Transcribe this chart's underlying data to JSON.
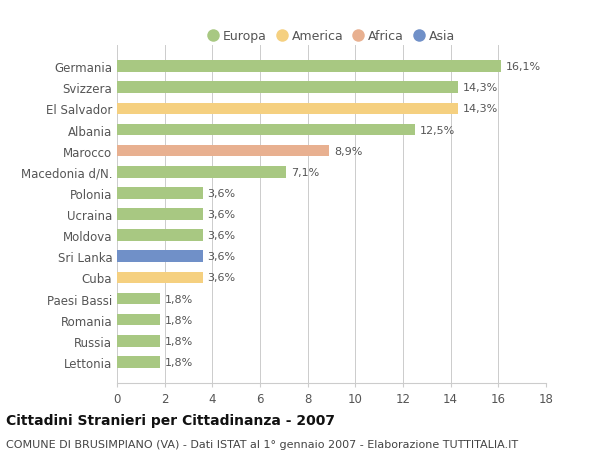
{
  "categories": [
    "Lettonia",
    "Russia",
    "Romania",
    "Paesi Bassi",
    "Cuba",
    "Sri Lanka",
    "Moldova",
    "Ucraina",
    "Polonia",
    "Macedonia d/N.",
    "Marocco",
    "Albania",
    "El Salvador",
    "Svizzera",
    "Germania"
  ],
  "values": [
    1.8,
    1.8,
    1.8,
    1.8,
    3.6,
    3.6,
    3.6,
    3.6,
    3.6,
    7.1,
    8.9,
    12.5,
    14.3,
    14.3,
    16.1
  ],
  "continents": [
    "Europa",
    "Europa",
    "Europa",
    "Europa",
    "America",
    "Asia",
    "Europa",
    "Europa",
    "Europa",
    "Europa",
    "Africa",
    "Europa",
    "America",
    "Europa",
    "Europa"
  ],
  "labels": [
    "1,8%",
    "1,8%",
    "1,8%",
    "1,8%",
    "3,6%",
    "3,6%",
    "3,6%",
    "3,6%",
    "3,6%",
    "7,1%",
    "8,9%",
    "12,5%",
    "14,3%",
    "14,3%",
    "16,1%"
  ],
  "continent_colors": {
    "Europa": "#a8c882",
    "America": "#f5d080",
    "Africa": "#e8b090",
    "Asia": "#7090c8"
  },
  "legend_order": [
    "Europa",
    "America",
    "Africa",
    "Asia"
  ],
  "title": "Cittadini Stranieri per Cittadinanza - 2007",
  "subtitle": "COMUNE DI BRUSIMPIANO (VA) - Dati ISTAT al 1° gennaio 2007 - Elaborazione TUTTITALIA.IT",
  "xlim": [
    0,
    18
  ],
  "xticks": [
    0,
    2,
    4,
    6,
    8,
    10,
    12,
    14,
    16,
    18
  ],
  "background_color": "#ffffff",
  "grid_color": "#cccccc",
  "bar_height": 0.55,
  "title_fontsize": 10,
  "subtitle_fontsize": 8,
  "label_fontsize": 8,
  "tick_fontsize": 8.5,
  "legend_fontsize": 9,
  "label_color": "#555555",
  "ytick_color": "#555555"
}
